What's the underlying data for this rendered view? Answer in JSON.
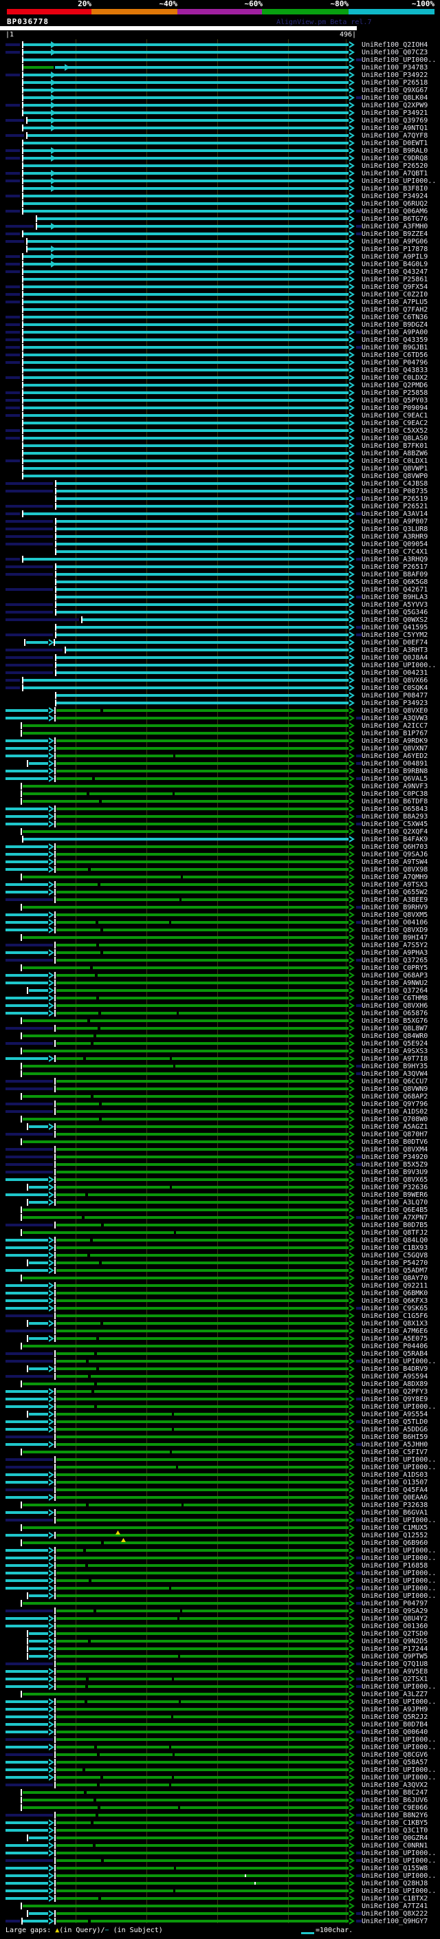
{
  "identity_key": {
    "labels": [
      "20%",
      "~40%",
      "~60%",
      "~80%",
      "~100%"
    ],
    "colors": [
      "#e80010",
      "#e07808",
      "#a020a0",
      "#08a010",
      "#10b8c8"
    ]
  },
  "watermark": "AlignView.pm Beta rel.7",
  "query": {
    "name": "BP036778",
    "start_label": "|1",
    "end_label": "496|"
  },
  "legend": {
    "large_gaps_prefix": "Large gaps: ",
    "query_gap_symbol": "▲",
    "query_gap_text": "(in Query)/",
    "subject_gap_symbol": "−",
    "subject_gap_text": " (in Subject)",
    "scale_label": "=100char."
  },
  "colors": {
    "red": "#e80010",
    "orange": "#e07808",
    "purple": "#a020a0",
    "green_key": "#08a010",
    "cyan_key": "#10b8c8",
    "line_cyan": "#1fc7cb",
    "line_green": "#0a960a",
    "navy": "#12125a",
    "gridline": "#3c3c10",
    "tick": "#ffffff",
    "label": "#e6e6ee",
    "gap_triangle": "#e8d800"
  },
  "chart_data": {
    "type": "alignment-overview",
    "title": "BP036778",
    "query_length": 496,
    "x_axis": {
      "min": 1,
      "max": 496,
      "gridlines": [
        100,
        200,
        300,
        400
      ],
      "scale_label": "=100char."
    },
    "identity_bins": [
      "20%",
      "~40%",
      "~60%",
      "~80%",
      "~100%"
    ],
    "cyan_rows_through_index": 87,
    "rows": [
      {
        "label": "UniRef100_Q2IOH4"
      },
      {
        "label": "UniRef100_Q07CZ3"
      },
      {
        "label": "UniRef100_UPI000..",
        "trailer": true
      },
      {
        "label": "UniRef100_P34783",
        "variant": "greenStart"
      },
      {
        "label": "UniRef100_P34922"
      },
      {
        "label": "UniRef100_P26518"
      },
      {
        "label": "UniRef100_Q9XG67"
      },
      {
        "label": "UniRef100_Q8LK04"
      },
      {
        "label": "UniRef100_Q2XPW9"
      },
      {
        "label": "UniRef100_P34921"
      },
      {
        "label": "UniRef100_Q39769"
      },
      {
        "label": "UniRef100_A9NTQ1"
      },
      {
        "label": "UniRef100_A7QYF8"
      },
      {
        "label": "UniRef100_D0EWT1"
      },
      {
        "label": "UniRef100_B9RAL0"
      },
      {
        "label": "UniRef100_C9DRQ8"
      },
      {
        "label": "UniRef100_P26520"
      },
      {
        "label": "UniRef100_A7QBT1"
      },
      {
        "label": "UniRef100_UPI000.."
      },
      {
        "label": "UniRef100_B3F8I0"
      },
      {
        "label": "UniRef100_P34924"
      },
      {
        "label": "UniRef100_Q6RUQ2"
      },
      {
        "label": "UniRef100_Q06AM6"
      },
      {
        "label": "UniRef100_B6TG76",
        "start": 52
      },
      {
        "label": "UniRef100_A3FMH0",
        "start": 52
      },
      {
        "label": "UniRef100_B9ZZE4"
      },
      {
        "label": "UniRef100_A9PG06"
      },
      {
        "label": "UniRef100_P17878"
      },
      {
        "label": "UniRef100_A9PIL9"
      },
      {
        "label": "UniRef100_B4G0L9"
      },
      {
        "label": "UniRef100_Q43247"
      },
      {
        "label": "UniRef100_P25861"
      },
      {
        "label": "UniRef100_Q9FX54"
      },
      {
        "label": "UniRef100_C0Z2I0"
      },
      {
        "label": "UniRef100_A7PLU5"
      },
      {
        "label": "UniRef100_Q7FAH2"
      },
      {
        "label": "UniRef100_C6TN36"
      },
      {
        "label": "UniRef100_B9DGZ4"
      },
      {
        "label": "UniRef100_A9PA00"
      },
      {
        "label": "UniRef100_Q43359"
      },
      {
        "label": "UniRef100_B9GJB1"
      },
      {
        "label": "UniRef100_C6TD56"
      },
      {
        "label": "UniRef100_P04796"
      },
      {
        "label": "UniRef100_Q43833"
      },
      {
        "label": "UniRef100_C0LDX2"
      },
      {
        "label": "UniRef100_Q2PMD6"
      },
      {
        "label": "UniRef100_P25858"
      },
      {
        "label": "UniRef100_Q5PY03"
      },
      {
        "label": "UniRef100_P09094"
      },
      {
        "label": "UniRef100_C9EAC1"
      },
      {
        "label": "UniRef100_C9EAC2"
      },
      {
        "label": "UniRef100_C5XX52"
      },
      {
        "label": "UniRef100_Q8LAS0"
      },
      {
        "label": "UniRef100_B7FK01"
      },
      {
        "label": "UniRef100_A8BZW6"
      },
      {
        "label": "UniRef100_C0LDX1"
      },
      {
        "label": "UniRef100_Q8VWP1"
      },
      {
        "label": "UniRef100_Q8VWP0"
      },
      {
        "label": "UniRef100_C4JBS8"
      },
      {
        "label": "UniRef100_P08735"
      },
      {
        "label": "UniRef100_P26519"
      },
      {
        "label": "UniRef100_P26521"
      },
      {
        "label": "UniRef100_A3AV14"
      },
      {
        "label": "UniRef100_A9P807"
      },
      {
        "label": "UniRef100_Q3LUR8"
      },
      {
        "label": "UniRef100_A3RHR9"
      },
      {
        "label": "UniRef100_Q09054"
      },
      {
        "label": "UniRef100_C7C4X1"
      },
      {
        "label": "UniRef100_A3RHQ9"
      },
      {
        "label": "UniRef100_P26517"
      },
      {
        "label": "UniRef100_B8AF09"
      },
      {
        "label": "UniRef100_Q6K5G8"
      },
      {
        "label": "UniRef100_Q42671"
      },
      {
        "label": "UniRef100_B9HLA3",
        "start": 80,
        "leader": false
      },
      {
        "label": "UniRef100_A5YVV3",
        "start": 80,
        "leader": true
      },
      {
        "label": "UniRef100_Q5G346",
        "start": 80,
        "leader": true
      },
      {
        "label": "UniRef100_Q0WXS2",
        "start": 118,
        "leader": true
      },
      {
        "label": "UniRef100_Q41595",
        "start": 80,
        "leader": false
      },
      {
        "label": "UniRef100_C5YYM2",
        "start": 80,
        "leader": true
      },
      {
        "label": "UniRef100_D0EF74",
        "stub": [
          38,
          70
        ],
        "start": 78,
        "leader": false
      },
      {
        "label": "UniRef100_A3RHT3",
        "start": 94,
        "leader": true
      },
      {
        "label": "UniRef100_Q0J8A4",
        "start": 80,
        "leader": true
      },
      {
        "label": "UniRef100_UPI000.."
      },
      {
        "label": "UniRef100_O04231"
      },
      {
        "label": "UniRef100_Q8VX66"
      },
      {
        "label": "UniRef100_C0SQK4"
      },
      {
        "label": "UniRef100_P08477"
      },
      {
        "label": "UniRef100_P34923"
      },
      {
        "label": "UniRef100_Q8VXE0"
      },
      {
        "label": "UniRef100_A3QVW3"
      },
      {
        "label": "UniRef100_A2ICC7"
      },
      {
        "label": "UniRef100_B1P767"
      },
      {
        "label": "UniRef100_A9RDK9"
      },
      {
        "label": "UniRef100_Q8VXN7"
      },
      {
        "label": "UniRef100_A6YED2"
      },
      {
        "label": "UniRef100_O04891"
      },
      {
        "label": "UniRef100_B9RBN8"
      },
      {
        "label": "UniRef100_Q6VAL5"
      },
      {
        "label": "UniRef100_A9NVF3"
      },
      {
        "label": "UniRef100_C0PC38"
      },
      {
        "label": "UniRef100_B6TDF8"
      },
      {
        "label": "UniRef100_O65843"
      },
      {
        "label": "UniRef100_B8A293"
      },
      {
        "label": "UniRef100_C5XW45"
      },
      {
        "label": "UniRef100_Q2XQF4"
      },
      {
        "label": "UniRef100_B4FAK9",
        "color": "cyan",
        "start": 32
      },
      {
        "label": "UniRef100_Q6H703"
      },
      {
        "label": "UniRef100_Q9SAJ6"
      },
      {
        "label": "UniRef100_A9TSW4"
      },
      {
        "label": "UniRef100_Q8VX98"
      },
      {
        "label": "UniRef100_A7QMH9"
      },
      {
        "label": "UniRef100_A9TSX3"
      },
      {
        "label": "UniRef100_Q655W2"
      },
      {
        "label": "UniRef100_A3BEE9"
      },
      {
        "label": "UniRef100_B9RHV9"
      },
      {
        "label": "UniRef100_Q8VXM5"
      },
      {
        "label": "UniRef100_O04106"
      },
      {
        "label": "UniRef100_Q8VXD9"
      },
      {
        "label": "UniRef100_B9HI47"
      },
      {
        "label": "UniRef100_A7S5Y2"
      },
      {
        "label": "UniRef100_A9PHA3"
      },
      {
        "label": "UniRef100_Q37265"
      },
      {
        "label": "UniRef100_C0PRY5"
      },
      {
        "label": "UniRef100_Q68AP3"
      },
      {
        "label": "UniRef100_A9NWU2"
      },
      {
        "label": "UniRef100_Q37264"
      },
      {
        "label": "UniRef100_C6THM8"
      },
      {
        "label": "UniRef100_Q8VXH6"
      },
      {
        "label": "UniRef100_O65876"
      },
      {
        "label": "UniRef100_B5XG76"
      },
      {
        "label": "UniRef100_Q8L8W7"
      },
      {
        "label": "UniRef100_Q84WR0"
      },
      {
        "label": "UniRef100_Q5E924"
      },
      {
        "label": "UniRef100_A9SXS3"
      },
      {
        "label": "UniRef100_A9T7I8"
      },
      {
        "label": "UniRef100_B9HY35"
      },
      {
        "label": "UniRef100_A3QVW4"
      },
      {
        "label": "UniRef100_Q6CCU7"
      },
      {
        "label": "UniRef100_Q8VWN9"
      },
      {
        "label": "UniRef100_Q68AP2"
      },
      {
        "label": "UniRef100_Q9Y796"
      },
      {
        "label": "UniRef100_A1DS02"
      },
      {
        "label": "UniRef100_Q708W0"
      },
      {
        "label": "UniRef100_A5AGZ1"
      },
      {
        "label": "UniRef100_Q870H7"
      },
      {
        "label": "UniRef100_B0DTV6"
      },
      {
        "label": "UniRef100_Q8VXM4"
      },
      {
        "label": "UniRef100_P34920"
      },
      {
        "label": "UniRef100_B5X5Z9"
      },
      {
        "label": "UniRef100_B9V3U9"
      },
      {
        "label": "UniRef100_Q8VX65"
      },
      {
        "label": "UniRef100_P32636"
      },
      {
        "label": "UniRef100_B9WER6"
      },
      {
        "label": "UniRef100_A3LQ70"
      },
      {
        "label": "UniRef100_Q6E4B5"
      },
      {
        "label": "UniRef100_A7XPN7"
      },
      {
        "label": "UniRef100_B0D7B5"
      },
      {
        "label": "UniRef100_Q8TFJ2"
      },
      {
        "label": "UniRef100_Q84LQ0"
      },
      {
        "label": "UniRef100_C1BX93"
      },
      {
        "label": "UniRef100_C5GQV8"
      },
      {
        "label": "UniRef100_P54270"
      },
      {
        "label": "UniRef100_Q5ADM7"
      },
      {
        "label": "UniRef100_Q8AY70"
      },
      {
        "label": "UniRef100_Q92211"
      },
      {
        "label": "UniRef100_Q6BMK0"
      },
      {
        "label": "UniRef100_Q6KFX3"
      },
      {
        "label": "UniRef100_C9SK65"
      },
      {
        "label": "UniRef100_C1G5F6"
      },
      {
        "label": "UniRef100_Q8X1X3"
      },
      {
        "label": "UniRef100_A7M6E6"
      },
      {
        "label": "UniRef100_A5E075"
      },
      {
        "label": "UniRef100_P04406"
      },
      {
        "label": "UniRef100_Q5RAB4"
      },
      {
        "label": "UniRef100_UPI000.."
      },
      {
        "label": "UniRef100_B4DRV9"
      },
      {
        "label": "UniRef100_A9S594"
      },
      {
        "label": "UniRef100_A8DX89"
      },
      {
        "label": "UniRef100_Q2PFY3"
      },
      {
        "label": "UniRef100_Q9Y8E9"
      },
      {
        "label": "UniRef100_UPI000.."
      },
      {
        "label": "UniRef100_A9S554"
      },
      {
        "label": "UniRef100_Q5TLD0"
      },
      {
        "label": "UniRef100_A5DDG6"
      },
      {
        "label": "UniRef100_B6HI59"
      },
      {
        "label": "UniRef100_A5JHH0"
      },
      {
        "label": "UniRef100_C5FIV7"
      },
      {
        "label": "UniRef100_UPI000.."
      },
      {
        "label": "UniRef100_UPI000.."
      },
      {
        "label": "UniRef100_A1DS03"
      },
      {
        "label": "UniRef100_O13507"
      },
      {
        "label": "UniRef100_Q45FA4"
      },
      {
        "label": "UniRef100_Q0EAA6"
      },
      {
        "label": "UniRef100_P32638"
      },
      {
        "label": "UniRef100_B6GVA1"
      },
      {
        "label": "UniRef100_UPI000.."
      },
      {
        "label": "UniRef100_C1MUX5"
      },
      {
        "label": "UniRef100_Q12552",
        "gapq": 168
      },
      {
        "label": "UniRef100_Q6B960",
        "gapq": 176
      },
      {
        "label": "UniRef100_UPI000.."
      },
      {
        "label": "UniRef100_UPI000.."
      },
      {
        "label": "UniRef100_P16858"
      },
      {
        "label": "UniRef100_UPI000.."
      },
      {
        "label": "UniRef100_UPI000.."
      },
      {
        "label": "UniRef100_UPI000.."
      },
      {
        "label": "UniRef100_UPI000.."
      },
      {
        "label": "UniRef100_P04797"
      },
      {
        "label": "UniRef100_Q9SA29"
      },
      {
        "label": "UniRef100_Q8U4Y2"
      },
      {
        "label": "UniRef100_O01360"
      },
      {
        "label": "UniRef100_Q2TSD0"
      },
      {
        "label": "UniRef100_Q9N2D5"
      },
      {
        "label": "UniRef100_P17244"
      },
      {
        "label": "UniRef100_Q9PTW5"
      },
      {
        "label": "UniRef100_Q7Q1U8"
      },
      {
        "label": "UniRef100_A9V5E8"
      },
      {
        "label": "UniRef100_Q2TSX1"
      },
      {
        "label": "UniRef100_UPI000.."
      },
      {
        "label": "UniRef100_A3LZZ7"
      },
      {
        "label": "UniRef100_UPI000.."
      },
      {
        "label": "UniRef100_A9JPH9"
      },
      {
        "label": "UniRef100_Q5R2J2"
      },
      {
        "label": "UniRef100_B0D7B4"
      },
      {
        "label": "UniRef100_Q00640"
      },
      {
        "label": "UniRef100_UPI000.."
      },
      {
        "label": "UniRef100_UPI000.."
      },
      {
        "label": "UniRef100_Q8CGV6"
      },
      {
        "label": "UniRef100_Q58A57"
      },
      {
        "label": "UniRef100_UPI000.."
      },
      {
        "label": "UniRef100_UPI000.."
      },
      {
        "label": "UniRef100_A3QVX2"
      },
      {
        "label": "UniRef100_B8C247"
      },
      {
        "label": "UniRef100_B6JUV6"
      },
      {
        "label": "UniRef100_C9E066"
      },
      {
        "label": "UniRef100_B8N2Y6"
      },
      {
        "label": "UniRef100_C1KBY5"
      },
      {
        "label": "UniRef100_Q3C1T0"
      },
      {
        "label": "UniRef100_Q0GZR4"
      },
      {
        "label": "UniRef100_C0NRN1"
      },
      {
        "label": "UniRef100_UPI000.."
      },
      {
        "label": "UniRef100_UPI000.."
      },
      {
        "label": "UniRef100_Q155W8"
      },
      {
        "label": "UniRef100_UPI000..",
        "wtick": 356
      },
      {
        "label": "UniRef100_Q28HJ8",
        "wtick": 370
      },
      {
        "label": "UniRef100_UPI000.."
      },
      {
        "label": "UniRef100_C1BTX2"
      },
      {
        "label": "UniRef100_A7TZ41"
      },
      {
        "label": "UniRef100_Q8X222",
        "mode": "stub40"
      },
      {
        "label": "UniRef100_Q9HGY7",
        "mode": "navyStub",
        "trailer": true,
        "gap": 128
      }
    ]
  }
}
